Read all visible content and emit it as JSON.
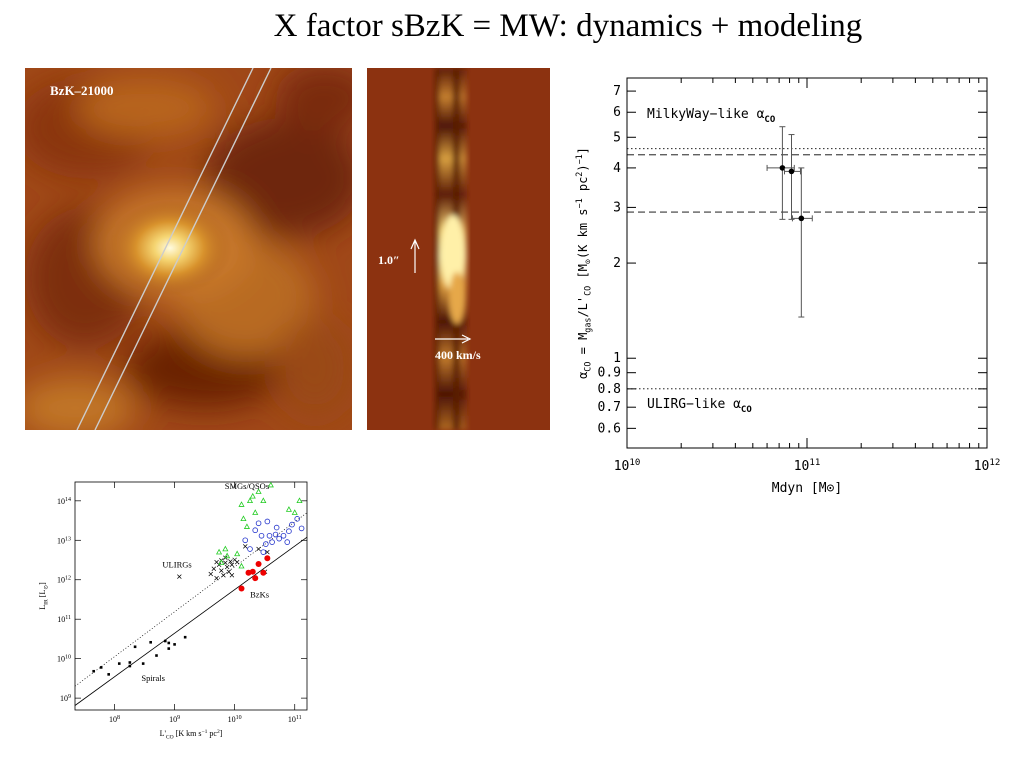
{
  "title": "X factor sBzK = MW: dynamics + modeling",
  "image_left": {
    "label": "BzK–21000"
  },
  "image_mid": {
    "scale_label": "1.0″",
    "velocity_label": "400 km/s"
  },
  "chart_data": [
    {
      "type": "scatter",
      "ylabel_parts": [
        "α",
        "CO",
        " = M",
        "gas",
        "/L'",
        "CO",
        " [M",
        "⊙",
        "(K km s",
        "−1",
        " pc",
        "2",
        ")",
        "−1",
        "]"
      ],
      "xlabel": "Mdyn [M⊙]",
      "x_scale": "log",
      "y_scale": "log",
      "xlim": [
        10000000000.0,
        1000000000000.0
      ],
      "ylim": [
        0.52,
        7.7
      ],
      "x_ticks": [
        {
          "v": 10000000000.0,
          "label": "10",
          "exp": "10"
        },
        {
          "v": 100000000000.0,
          "label": "10",
          "exp": "11"
        },
        {
          "v": 1000000000000.0,
          "label": "10",
          "exp": "12"
        }
      ],
      "y_ticks": [
        {
          "v": 0.6,
          "label": "0.6"
        },
        {
          "v": 0.7,
          "label": "0.7"
        },
        {
          "v": 0.8,
          "label": "0.8"
        },
        {
          "v": 0.9,
          "label": "0.9"
        },
        {
          "v": 1,
          "label": "1"
        },
        {
          "v": 2,
          "label": "2"
        },
        {
          "v": 3,
          "label": "3"
        },
        {
          "v": 4,
          "label": "4"
        },
        {
          "v": 5,
          "label": "5"
        },
        {
          "v": 6,
          "label": "6"
        },
        {
          "v": 7,
          "label": "7"
        }
      ],
      "points": [
        {
          "x": 73000000000.0,
          "y": 4.0,
          "xerr": [
            60000000000.0,
            85000000000.0
          ],
          "yerr": [
            2.75,
            5.4
          ]
        },
        {
          "x": 82000000000.0,
          "y": 3.9,
          "xerr": [
            75000000000.0,
            92000000000.0
          ],
          "yerr": [
            2.75,
            5.1
          ]
        },
        {
          "x": 93000000000.0,
          "y": 2.77,
          "xerr": [
            83000000000.0,
            107000000000.0
          ],
          "yerr": [
            1.35,
            4.0
          ]
        }
      ],
      "hlines": [
        {
          "y": 4.6,
          "style": "dotted"
        },
        {
          "y": 4.4,
          "style": "dashed"
        },
        {
          "y": 2.9,
          "style": "dashed"
        },
        {
          "y": 0.8,
          "style": "dotted"
        }
      ],
      "annotations": [
        {
          "text": "MilkyWay−like α",
          "sub": "CO",
          "at": "upper-left"
        },
        {
          "text": "ULIRG−like α",
          "sub": "CO",
          "at": "lower-left"
        }
      ]
    },
    {
      "type": "scatter",
      "xlabel_parts": [
        "L'",
        "CO",
        " [K km s",
        "−1",
        " pc",
        "2",
        "]"
      ],
      "ylabel_parts": [
        "L",
        "IR",
        " [L",
        "⊙",
        "]"
      ],
      "x_scale": "log",
      "y_scale": "log",
      "xlim": [
        22000000.0,
        160000000000.0
      ],
      "ylim": [
        500000000.0,
        300000000000000.0
      ],
      "x_ticks": [
        {
          "v": 100000000.0,
          "label": "10",
          "exp": "8"
        },
        {
          "v": 1000000000.0,
          "label": "10",
          "exp": "9"
        },
        {
          "v": 10000000000.0,
          "label": "10",
          "exp": "10"
        },
        {
          "v": 100000000000.0,
          "label": "10",
          "exp": "11"
        }
      ],
      "y_ticks": [
        {
          "v": 1000000000.0,
          "label": "10",
          "exp": "9"
        },
        {
          "v": 10000000000.0,
          "label": "10",
          "exp": "10"
        },
        {
          "v": 100000000000.0,
          "label": "10",
          "exp": "11"
        },
        {
          "v": 1000000000000.0,
          "label": "10",
          "exp": "12"
        },
        {
          "v": 10000000000000.0,
          "label": "10",
          "exp": "13"
        },
        {
          "v": 100000000000000.0,
          "label": "10",
          "exp": "14"
        }
      ],
      "group_labels": [
        "SMGs/QSOs",
        "ULIRGs",
        "BzKs",
        "Spirals"
      ],
      "groups": [
        {
          "name": "Spirals",
          "marker": "dot",
          "color": "#000000",
          "points": [
            [
              45000000.0,
              4800000000.0
            ],
            [
              60000000.0,
              6000000000.0
            ],
            [
              80000000.0,
              4000000000.0
            ],
            [
              120000000.0,
              7500000000.0
            ],
            [
              180000000.0,
              8000000000.0
            ],
            [
              180000000.0,
              6500000000.0
            ],
            [
              220000000.0,
              20000000000.0
            ],
            [
              300000000.0,
              7500000000.0
            ],
            [
              400000000.0,
              26000000000.0
            ],
            [
              500000000.0,
              12000000000.0
            ],
            [
              700000000.0,
              28000000000.0
            ],
            [
              800000000.0,
              18000000000.0
            ],
            [
              1000000000.0,
              23000000000.0
            ],
            [
              800000000.0,
              25000000000.0
            ],
            [
              1500000000.0,
              35000000000.0
            ]
          ]
        },
        {
          "name": "ULIRGs",
          "marker": "cross",
          "color": "#000000",
          "points": [
            [
              1200000000.0,
              1200000000000.0
            ],
            [
              4000000000.0,
              1400000000000.0
            ],
            [
              4500000000.0,
              1900000000000.0
            ],
            [
              5000000000.0,
              1100000000000.0
            ],
            [
              5500000000.0,
              2400000000000.0
            ],
            [
              6000000000.0,
              1700000000000.0
            ],
            [
              6500000000.0,
              1300000000000.0
            ],
            [
              7000000000.0,
              2700000000000.0
            ],
            [
              7500000000.0,
              2100000000000.0
            ],
            [
              8000000000.0,
              1600000000000.0
            ],
            [
              8500000000.0,
              2900000000000.0
            ],
            [
              9000000000.0,
              2400000000000.0
            ],
            [
              10000000000.0,
              3200000000000.0
            ],
            [
              11000000000.0,
              2800000000000.0
            ],
            [
              6000000000.0,
              3100000000000.0
            ],
            [
              7000000000.0,
              3600000000000.0
            ],
            [
              9000000000.0,
              1300000000000.0
            ],
            [
              5000000000.0,
              2800000000000.0
            ],
            [
              32000000000.0,
              1600000000000.0
            ],
            [
              25000000000.0,
              6000000000000.0
            ],
            [
              35000000000.0,
              5000000000000.0
            ],
            [
              15000000000.0,
              7000000000000.0
            ]
          ]
        },
        {
          "name": "BzKs",
          "marker": "filled-circle",
          "color": "#ee0000",
          "points": [
            [
              17000000000.0,
              1500000000000.0
            ],
            [
              22000000000.0,
              1100000000000.0
            ],
            [
              20000000000.0,
              1600000000000.0
            ],
            [
              25000000000.0,
              2500000000000.0
            ],
            [
              13000000000.0,
              600000000000.0
            ],
            [
              30000000000.0,
              1500000000000.0
            ],
            [
              35000000000.0,
              3500000000000.0
            ]
          ]
        },
        {
          "name": "SMGs-blue",
          "marker": "open-circle",
          "color": "#2233cc",
          "points": [
            [
              28000000000.0,
              13000000000000.0
            ],
            [
              33000000000.0,
              8000000000000.0
            ],
            [
              38000000000.0,
              13000000000000.0
            ],
            [
              42000000000.0,
              9000000000000.0
            ],
            [
              48000000000.0,
              14000000000000.0
            ],
            [
              55000000000.0,
              11000000000000.0
            ],
            [
              65000000000.0,
              13000000000000.0
            ],
            [
              75000000000.0,
              9000000000000.0
            ],
            [
              90000000000.0,
              25000000000000.0
            ],
            [
              110000000000.0,
              35000000000000.0
            ],
            [
              130000000000.0,
              20000000000000.0
            ],
            [
              15000000000.0,
              10000000000000.0
            ],
            [
              18000000000.0,
              6000000000000.0
            ],
            [
              22000000000.0,
              18000000000000.0
            ],
            [
              25000000000.0,
              27000000000000.0
            ],
            [
              35000000000.0,
              30000000000000.0
            ],
            [
              50000000000.0,
              21000000000000.0
            ],
            [
              80000000000.0,
              17000000000000.0
            ],
            [
              30000000000.0,
              5000000000000.0
            ]
          ]
        },
        {
          "name": "SMGs-green",
          "marker": "triangle",
          "color": "#22cc22",
          "points": [
            [
              40000000000.0,
              250000000000000.0
            ],
            [
              25000000000.0,
              170000000000000.0
            ],
            [
              30000000000.0,
              100000000000000.0
            ],
            [
              120000000000.0,
              100000000000000.0
            ],
            [
              13000000000.0,
              80000000000000.0
            ],
            [
              18000000000.0,
              100000000000000.0
            ],
            [
              20000000000.0,
              130000000000000.0
            ],
            [
              5500000000.0,
              5000000000000.0
            ],
            [
              6000000000.0,
              2700000000000.0
            ],
            [
              7500000000.0,
              4000000000000.0
            ],
            [
              11000000000.0,
              4500000000000.0
            ],
            [
              13000000000.0,
              2200000000000.0
            ],
            [
              80000000000.0,
              60000000000000.0
            ],
            [
              100000000000.0,
              50000000000000.0
            ],
            [
              14000000000.0,
              35000000000000.0
            ],
            [
              22000000000.0,
              50000000000000.0
            ],
            [
              16000000000.0,
              22000000000000.0
            ],
            [
              7000000000.0,
              6000000000000.0
            ]
          ]
        }
      ],
      "lines": [
        {
          "style": "solid",
          "points": [
            [
              22000000.0,
              650000000.0
            ],
            [
              160000000000.0,
              12000000000000.0
            ]
          ]
        },
        {
          "style": "dotted",
          "points": [
            [
              22000000.0,
              2000000000.0
            ],
            [
              160000000000.0,
              50000000000000.0
            ]
          ]
        }
      ]
    }
  ]
}
